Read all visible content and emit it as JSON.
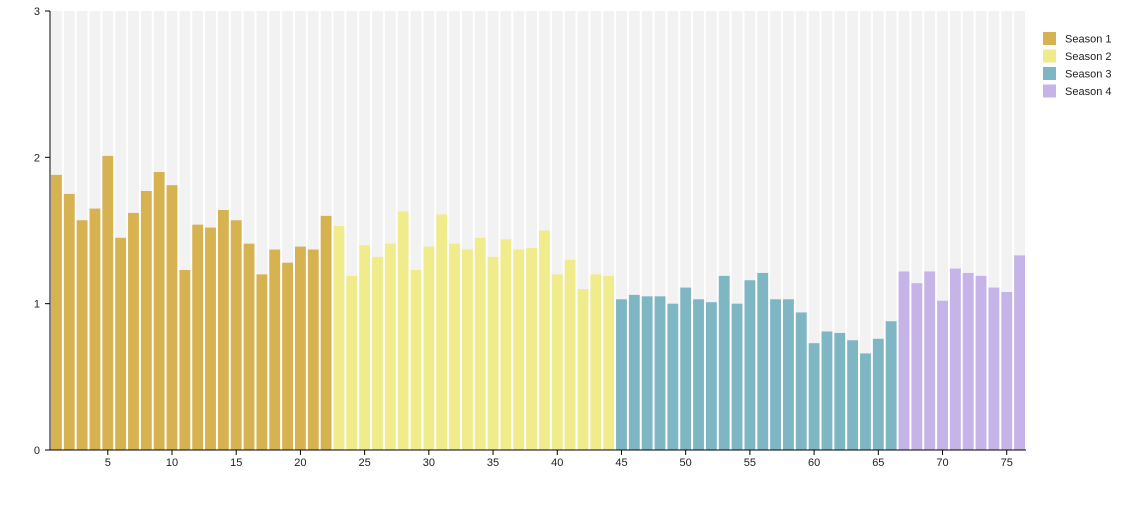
{
  "chart_data": {
    "type": "bar",
    "title": "",
    "xlabel": "",
    "ylabel": "",
    "ylim": [
      0,
      3
    ],
    "yticks": [
      0,
      1,
      2,
      3
    ],
    "xticks": [
      5,
      10,
      15,
      20,
      25,
      30,
      35,
      40,
      45,
      50,
      55,
      60,
      65,
      70,
      75
    ],
    "background_bars": true,
    "grid": false,
    "legend_position": "top-right",
    "series": [
      {
        "name": "Season 1",
        "color": "#d6b350",
        "x_start": 1,
        "values": [
          1.88,
          1.75,
          1.57,
          1.65,
          2.01,
          1.45,
          1.62,
          1.77,
          1.9,
          1.81,
          1.23,
          1.54,
          1.52,
          1.64,
          1.57,
          1.41,
          1.2,
          1.37,
          1.28,
          1.39,
          1.37,
          1.6
        ]
      },
      {
        "name": "Season 2",
        "color": "#f0ec8c",
        "x_start": 23,
        "values": [
          1.53,
          1.19,
          1.4,
          1.32,
          1.41,
          1.63,
          1.23,
          1.39,
          1.61,
          1.41,
          1.37,
          1.45,
          1.32,
          1.44,
          1.37,
          1.38,
          1.5,
          1.2,
          1.3,
          1.1,
          1.2,
          1.19
        ]
      },
      {
        "name": "Season 3",
        "color": "#7fb6c4",
        "x_start": 45,
        "values": [
          1.03,
          1.06,
          1.05,
          1.05,
          1.0,
          1.11,
          1.03,
          1.01,
          1.19,
          1.0,
          1.16,
          1.21,
          1.03,
          1.03,
          0.94,
          0.73,
          0.81,
          0.8,
          0.75,
          0.66,
          0.76,
          0.88
        ]
      },
      {
        "name": "Season 4",
        "color": "#c6b3e8",
        "x_start": 67,
        "values": [
          1.22,
          1.14,
          1.22,
          1.02,
          1.24,
          1.21,
          1.19,
          1.11,
          1.08,
          1.33
        ]
      }
    ]
  }
}
